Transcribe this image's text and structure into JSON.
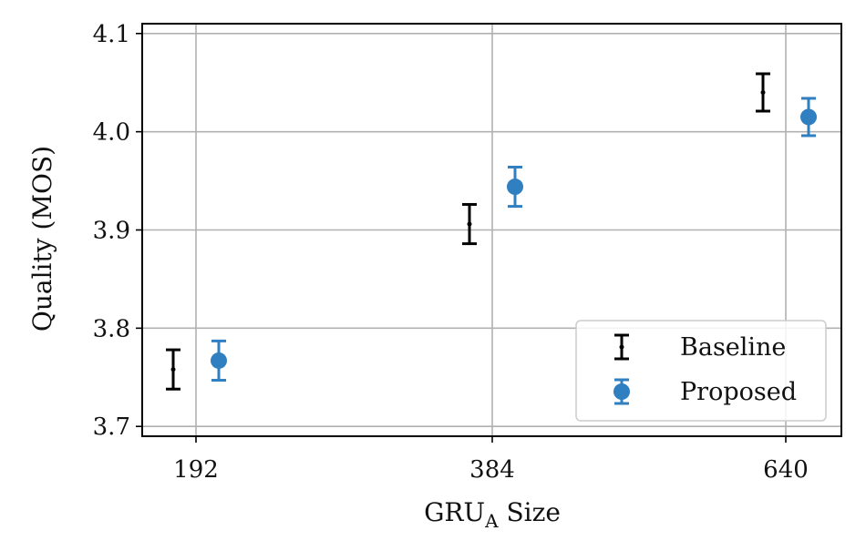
{
  "chart_data": {
    "type": "scatter",
    "title": "",
    "xlabel_main": "GRU",
    "xlabel_sub": "A",
    "xlabel_rest": " Size",
    "ylabel": "Quality (MOS)",
    "x_categories": [
      "192",
      "384",
      "640"
    ],
    "ylim": [
      3.69,
      4.11
    ],
    "yticks": [
      "3.7",
      "3.8",
      "3.9",
      "4.0",
      "4.1"
    ],
    "grid": true,
    "legend_position": "lower right",
    "series": [
      {
        "name": "Baseline",
        "color": "#000000",
        "marker": "point",
        "points": [
          {
            "x": "192",
            "y": 3.758,
            "err": 0.02
          },
          {
            "x": "384",
            "y": 3.906,
            "err": 0.02
          },
          {
            "x": "640",
            "y": 4.04,
            "err": 0.019
          }
        ]
      },
      {
        "name": "Proposed",
        "color": "#2f7fc1",
        "marker": "circle",
        "points": [
          {
            "x": "192",
            "y": 3.767,
            "err": 0.02
          },
          {
            "x": "384",
            "y": 3.944,
            "err": 0.02
          },
          {
            "x": "640",
            "y": 4.015,
            "err": 0.019
          }
        ]
      }
    ]
  }
}
